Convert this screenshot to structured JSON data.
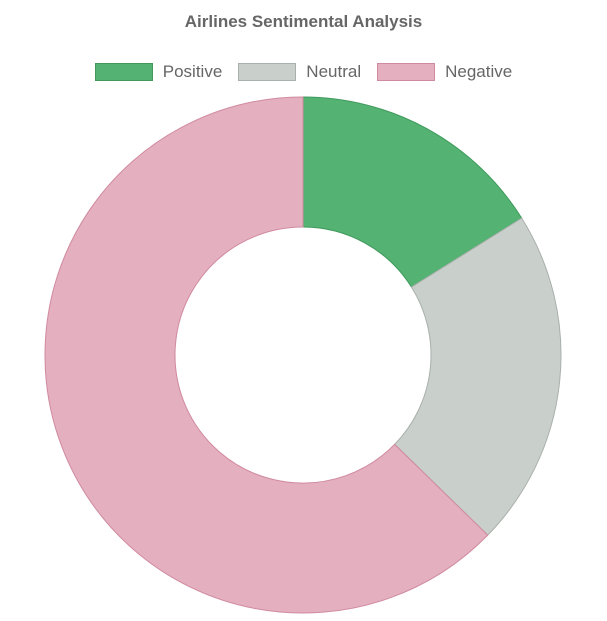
{
  "chart_data": {
    "type": "pie",
    "variant": "doughnut",
    "title": "Airlines Sentimental Analysis",
    "legend_position": "top",
    "categories": [
      "Positive",
      "Neutral",
      "Negative"
    ],
    "values": [
      16.1,
      21.2,
      62.7
    ],
    "colors": [
      "#54b273",
      "#c9cfcb",
      "#e4afbe"
    ],
    "border_colors": [
      "#3f9a5c",
      "#a9b0ab",
      "#d08aa0"
    ]
  }
}
